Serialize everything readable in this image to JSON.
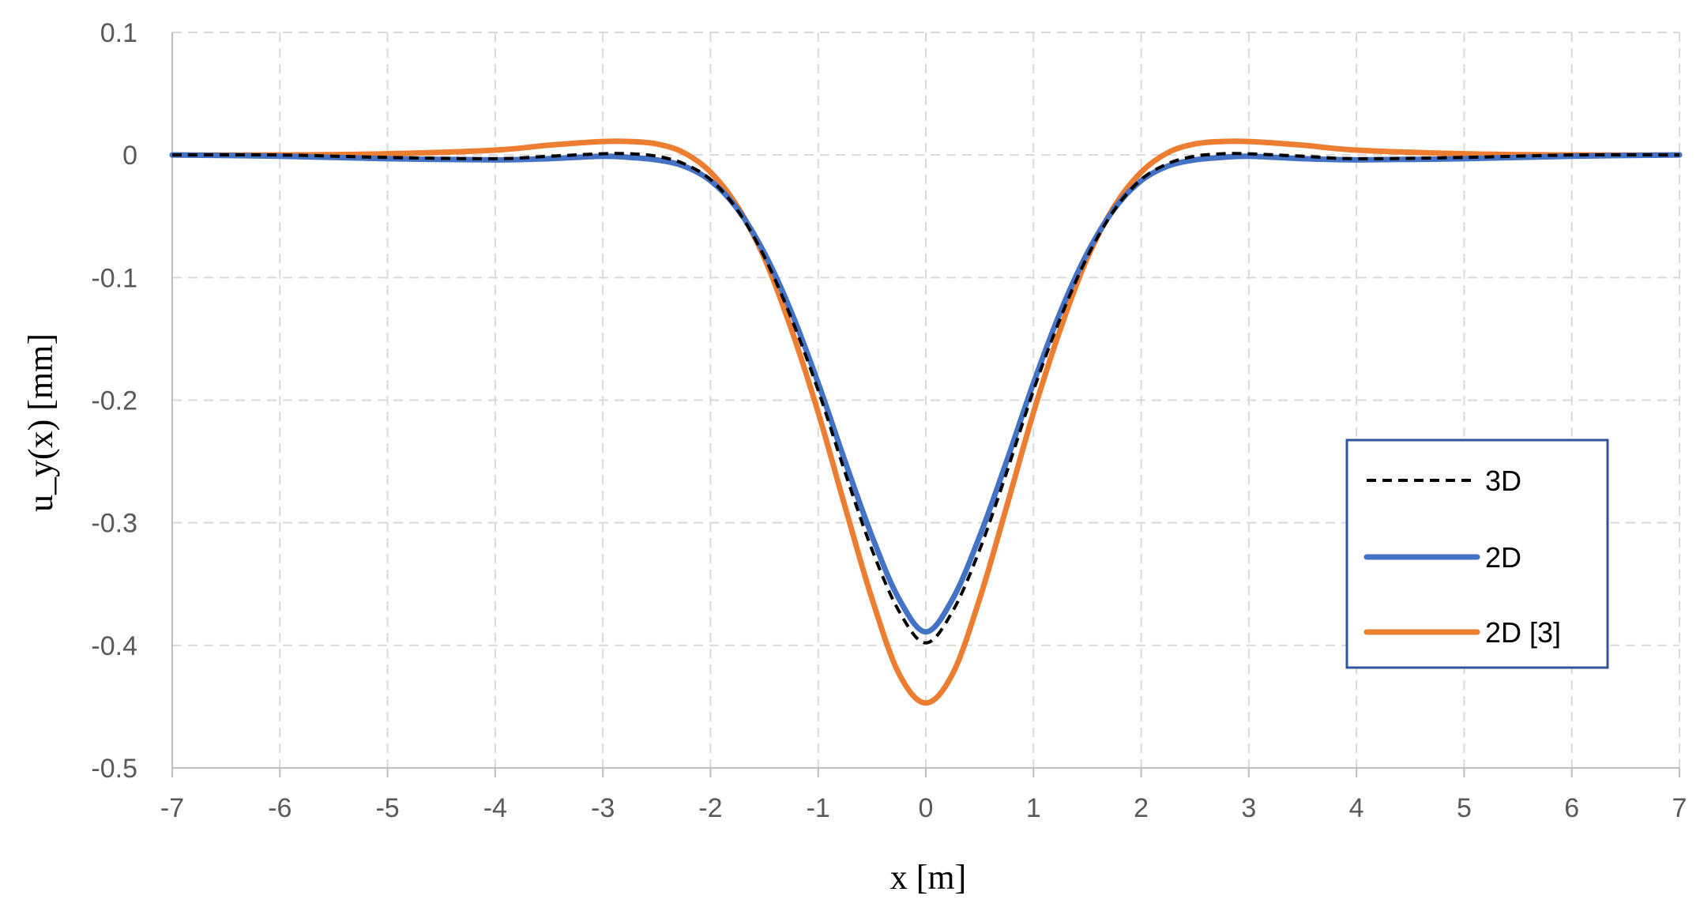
{
  "chart_data": {
    "type": "line",
    "title": "",
    "xlabel": "x [m]",
    "ylabel": "u_y(x) [mm]",
    "xlim": [
      -7,
      7
    ],
    "ylim": [
      -0.5,
      0.1
    ],
    "xticks": [
      -7,
      -6,
      -5,
      -4,
      -3,
      -2,
      -1,
      0,
      1,
      2,
      3,
      4,
      5,
      6,
      7
    ],
    "yticks": [
      0.1,
      0,
      -0.1,
      -0.2,
      -0.3,
      -0.4,
      -0.5
    ],
    "ytick_labels": [
      "0.1",
      "0",
      "-0.1",
      "-0.2",
      "-0.3",
      "-0.4",
      "-0.5"
    ],
    "grid": true,
    "legend_position": "right",
    "series": [
      {
        "name": "3D",
        "style": "dashed",
        "color": "#000000",
        "x": [
          -7,
          -6,
          -5,
          -4,
          -3.5,
          -3,
          -2.75,
          -2.5,
          -2.25,
          -2,
          -1.75,
          -1.5,
          -1.25,
          -1,
          -0.75,
          -0.5,
          -0.25,
          0,
          0.25,
          0.5,
          0.75,
          1,
          1.25,
          1.5,
          1.75,
          2,
          2.25,
          2.5,
          2.75,
          3,
          3.5,
          4,
          5,
          6,
          7
        ],
        "y": [
          0,
          0,
          -0.002,
          -0.003,
          -0.001,
          0.001,
          0.001,
          -0.001,
          -0.007,
          -0.02,
          -0.045,
          -0.083,
          -0.133,
          -0.192,
          -0.259,
          -0.322,
          -0.372,
          -0.398,
          -0.372,
          -0.322,
          -0.259,
          -0.192,
          -0.133,
          -0.083,
          -0.045,
          -0.02,
          -0.007,
          -0.001,
          0.001,
          0.001,
          -0.001,
          -0.003,
          -0.002,
          0,
          0
        ]
      },
      {
        "name": "2D",
        "style": "solid",
        "color": "#4472C4",
        "x": [
          -7,
          -6,
          -5,
          -4,
          -3.5,
          -3,
          -2.75,
          -2.5,
          -2.25,
          -2,
          -1.75,
          -1.5,
          -1.25,
          -1,
          -0.75,
          -0.5,
          -0.25,
          0,
          0.25,
          0.5,
          0.75,
          1,
          1.25,
          1.5,
          1.75,
          2,
          2.25,
          2.5,
          2.75,
          3,
          3.5,
          4,
          5,
          6,
          7
        ],
        "y": [
          0,
          -0.001,
          -0.003,
          -0.004,
          -0.003,
          -0.001,
          -0.002,
          -0.004,
          -0.009,
          -0.021,
          -0.044,
          -0.08,
          -0.128,
          -0.186,
          -0.25,
          -0.311,
          -0.362,
          -0.389,
          -0.362,
          -0.311,
          -0.25,
          -0.186,
          -0.128,
          -0.08,
          -0.044,
          -0.021,
          -0.009,
          -0.004,
          -0.002,
          -0.001,
          -0.003,
          -0.004,
          -0.003,
          -0.001,
          0
        ]
      },
      {
        "name": "2D [3]",
        "style": "solid",
        "color": "#ED7D31",
        "x": [
          -7,
          -6,
          -5,
          -4,
          -3.5,
          -3,
          -2.75,
          -2.5,
          -2.25,
          -2,
          -1.75,
          -1.5,
          -1.25,
          -1,
          -0.75,
          -0.5,
          -0.25,
          0,
          0.25,
          0.5,
          0.75,
          1,
          1.25,
          1.5,
          1.75,
          2,
          2.25,
          2.5,
          2.75,
          3,
          3.5,
          4,
          5,
          6,
          7
        ],
        "y": [
          0,
          0,
          0.001,
          0.004,
          0.008,
          0.011,
          0.011,
          0.009,
          0.002,
          -0.014,
          -0.042,
          -0.084,
          -0.142,
          -0.21,
          -0.287,
          -0.362,
          -0.423,
          -0.447,
          -0.423,
          -0.362,
          -0.287,
          -0.21,
          -0.142,
          -0.084,
          -0.042,
          -0.014,
          0.002,
          0.009,
          0.011,
          0.011,
          0.008,
          0.004,
          0.001,
          0,
          0
        ]
      }
    ]
  }
}
